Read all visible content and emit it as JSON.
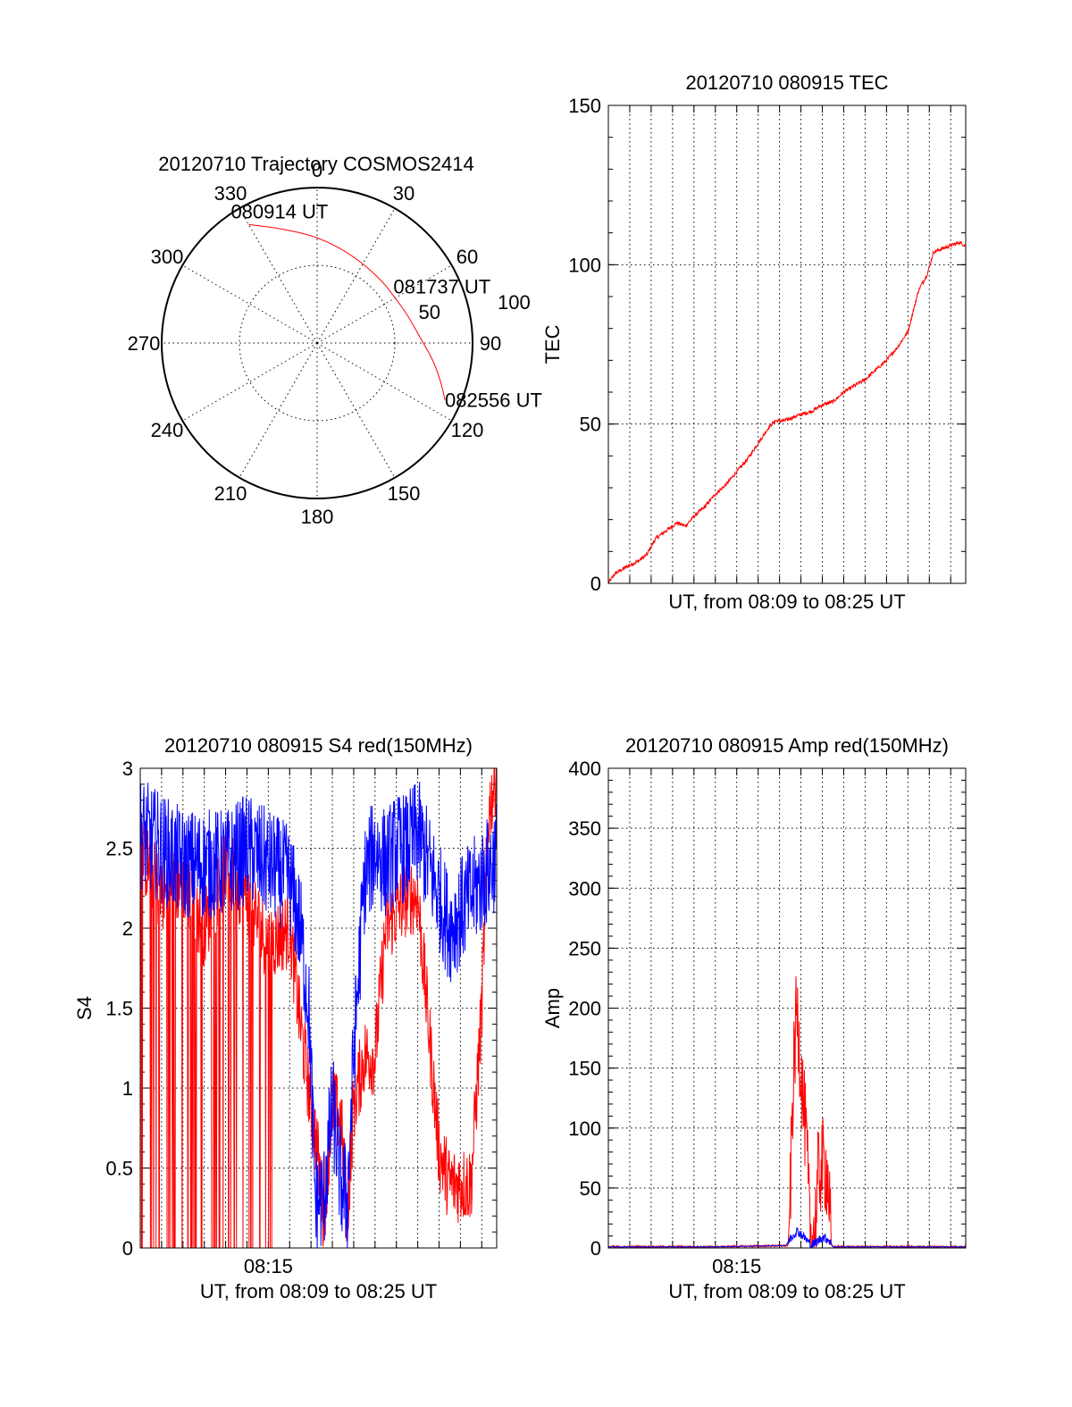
{
  "colors": {
    "red": "#ff0000",
    "blue": "#0000ff"
  },
  "chart_data": [
    {
      "type": "polar-trajectory",
      "title": "20120710 Trajectory COSMOS2414",
      "angle_labels": [
        "0",
        "30",
        "60",
        "90",
        "120",
        "150",
        "180",
        "210",
        "240",
        "270",
        "300",
        "330"
      ],
      "angle_values": [
        0,
        30,
        60,
        90,
        120,
        150,
        180,
        210,
        240,
        270,
        300,
        330
      ],
      "ring_labels": [
        "50",
        "100"
      ],
      "ring_values": [
        50,
        100
      ],
      "series": [
        {
          "color": "red",
          "points": [
            {
              "az": 330,
              "zd": 88
            },
            {
              "az": 343,
              "zd": 77
            },
            {
              "az": 1,
              "zd": 68
            },
            {
              "az": 22,
              "zd": 61
            },
            {
              "az": 45,
              "zd": 58
            },
            {
              "az": 60,
              "zd": 58
            },
            {
              "az": 73,
              "zd": 61
            },
            {
              "az": 88,
              "zd": 67
            },
            {
              "az": 99,
              "zd": 76
            },
            {
              "az": 108,
              "zd": 84
            },
            {
              "az": 114,
              "zd": 90
            }
          ]
        }
      ],
      "annotations": [
        {
          "text": "080914 UT",
          "at": {
            "az": 330,
            "zd": 88
          }
        },
        {
          "text": "081737 UT",
          "at": {
            "az": 60,
            "zd": 58
          }
        },
        {
          "text": "082556 UT",
          "at": {
            "az": 114,
            "zd": 90
          }
        }
      ]
    },
    {
      "type": "line",
      "title": "20120710 080915 TEC",
      "ylabel": "TEC",
      "xlabel": "UT, from 08:09 to 08:25 UT",
      "ylim": [
        0,
        150
      ],
      "yticks": [
        0,
        50,
        100,
        150
      ],
      "ytick_labels": [
        "0",
        "50",
        "100",
        "150"
      ],
      "xlim_minutes": [
        0,
        16.7
      ],
      "grid": true,
      "series": [
        {
          "color": "red",
          "x_minutes": [
            0,
            0.3,
            0.8,
            1.4,
            1.8,
            2.2,
            2.6,
            3.2,
            3.6,
            4.0,
            4.5,
            5.0,
            5.5,
            6.0,
            6.5,
            7.0,
            7.5,
            7.8,
            8.2,
            8.6,
            9.0,
            9.5,
            10.0,
            10.5,
            11.0,
            11.5,
            12.0,
            12.5,
            13.0,
            13.5,
            14.0,
            14.5,
            14.9,
            15.2,
            15.6,
            16.0,
            16.4,
            16.7
          ],
          "values": [
            0,
            3,
            5,
            7,
            9,
            14,
            16,
            19,
            18,
            21,
            24,
            28,
            31,
            35,
            39,
            44,
            49,
            51,
            51,
            52,
            53,
            54,
            56,
            57,
            60,
            62,
            64,
            67,
            70,
            74,
            79,
            92,
            97,
            104,
            105,
            106,
            107,
            106
          ],
          "noise": 0.6
        }
      ]
    },
    {
      "type": "line",
      "title": "20120710 080915 S4 red(150MHz)",
      "ylabel": "S4",
      "xlabel": "UT, from 08:09 to 08:25 UT",
      "ylim": [
        0,
        3
      ],
      "yticks": [
        0,
        0.5,
        1,
        1.5,
        2,
        2.5,
        3
      ],
      "ytick_labels": [
        "0",
        "0.5",
        "1",
        "1.5",
        "2",
        "2.5",
        "3"
      ],
      "xlim_minutes": [
        0,
        16.7
      ],
      "xtick_label": "08:15",
      "xtick_minutes": 6,
      "grid": true,
      "series": [
        {
          "color": "red",
          "x_minutes": [
            0,
            1,
            2,
            3,
            4,
            5,
            6,
            7,
            7.5,
            7.9,
            8.3,
            8.6,
            9.0,
            9.4,
            9.7,
            10.0,
            10.5,
            11.0,
            11.5,
            12.0,
            12.5,
            13.0,
            13.5,
            14.0,
            14.5,
            15.0,
            15.5,
            16.0,
            16.3,
            16.7
          ],
          "values": [
            2.5,
            2.2,
            2.3,
            2.0,
            2.4,
            2.2,
            1.9,
            2.0,
            1.4,
            1.0,
            0.6,
            0.2,
            0.9,
            0.8,
            0.2,
            0.9,
            1.2,
            1.2,
            2.0,
            2.1,
            2.2,
            2.2,
            1.4,
            0.6,
            0.4,
            0.4,
            0.4,
            1.5,
            2.7,
            3.0
          ],
          "noise": 0.25,
          "dropout_region_minutes": [
            0,
            6.2
          ],
          "dropout_density": 0.18
        },
        {
          "color": "blue",
          "x_minutes": [
            0,
            1,
            2,
            3,
            4,
            5,
            6,
            7,
            7.5,
            7.9,
            8.2,
            8.6,
            9.0,
            9.4,
            9.7,
            10.0,
            10.5,
            11.0,
            11.5,
            12.0,
            12.5,
            13.0,
            13.5,
            14.0,
            14.5,
            15.0,
            15.5,
            16.0,
            16.5,
            16.7
          ],
          "values": [
            2.6,
            2.5,
            2.4,
            2.4,
            2.4,
            2.5,
            2.4,
            2.3,
            2.0,
            1.5,
            0.3,
            0.3,
            0.9,
            0.4,
            0.3,
            1.2,
            2.3,
            2.5,
            2.4,
            2.5,
            2.5,
            2.6,
            2.4,
            2.2,
            2.0,
            2.1,
            2.2,
            2.3,
            2.4,
            2.5
          ],
          "noise": 0.35,
          "dropout_region_minutes": [
            6.7,
            6.7
          ],
          "dropout_density": 1
        }
      ]
    },
    {
      "type": "line",
      "title": "20120710 080915 Amp red(150MHz)",
      "ylabel": "Amp",
      "xlabel": "UT, from 08:09 to 08:25 UT",
      "ylim": [
        0,
        400
      ],
      "yticks": [
        0,
        50,
        100,
        150,
        200,
        250,
        300,
        350,
        400
      ],
      "ytick_labels": [
        "0",
        "50",
        "100",
        "150",
        "200",
        "250",
        "300",
        "350",
        "400"
      ],
      "xlim_minutes": [
        0,
        16.7
      ],
      "xtick_label": "08:15",
      "xtick_minutes": 6,
      "grid": true,
      "series": [
        {
          "color": "red",
          "x_minutes": [
            0,
            5,
            8.4,
            8.5,
            8.6,
            8.8,
            9.0,
            9.2,
            9.3,
            9.4,
            9.5,
            9.7,
            9.8,
            10.0,
            10.2,
            10.3,
            10.4,
            10.5,
            16.7
          ],
          "values": [
            1,
            1,
            2,
            40,
            120,
            200,
            150,
            100,
            70,
            20,
            5,
            25,
            60,
            70,
            65,
            50,
            3,
            1,
            1
          ],
          "noise": 40,
          "noise_region_minutes": [
            8.5,
            10.4
          ]
        },
        {
          "color": "blue",
          "x_minutes": [
            0,
            5,
            8.3,
            8.5,
            8.8,
            9.0,
            9.3,
            9.5,
            9.8,
            10.0,
            10.3,
            10.5,
            16.7
          ],
          "values": [
            1,
            1,
            2,
            8,
            14,
            12,
            6,
            2,
            6,
            9,
            7,
            1,
            1
          ],
          "noise": 4,
          "noise_region_minutes": [
            8.4,
            10.4
          ]
        }
      ]
    }
  ]
}
